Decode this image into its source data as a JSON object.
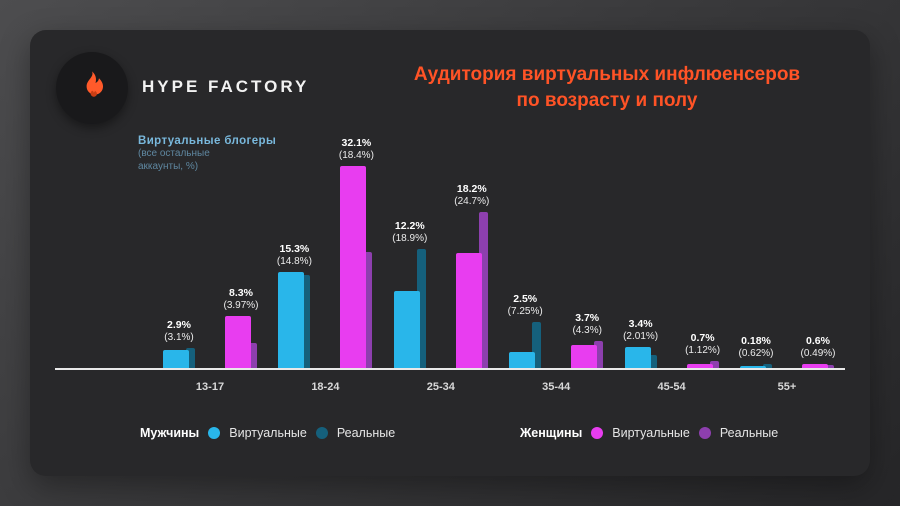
{
  "brand": {
    "name": "HYPE FACTORY",
    "accent": "#ff5a2a"
  },
  "title": {
    "line1": "Аудитория виртуальных инфлюенсеров",
    "line2": "по возрасту и полу",
    "color": "#ff5326"
  },
  "annotation": {
    "heading": "Виртуальные  блогеры",
    "sub_line1": "(все остальные",
    "sub_line2": "аккаунты, %)"
  },
  "legend": {
    "men_title": "Мужчины",
    "women_title": "Женщины",
    "virtual_label": "Виртуальные",
    "real_label": "Реальные"
  },
  "chart_data": {
    "type": "bar",
    "title": "Аудитория виртуальных инфлюенсеров по возрасту и полу",
    "note": "Виртуальные блогеры (все остальные аккаунты, %)",
    "grid": false,
    "legend_position": "bottom",
    "ylim": [
      0,
      35
    ],
    "categories": [
      "13-17",
      "18-24",
      "25-34",
      "35-44",
      "45-54",
      "55+"
    ],
    "series": [
      {
        "name": "Мужчины — Виртуальные",
        "color": "#29b6ea",
        "values": [
          2.9,
          15.3,
          12.2,
          2.5,
          3.4,
          0.18
        ]
      },
      {
        "name": "Мужчины — Реальные",
        "color": "#15607c",
        "values": [
          3.1,
          14.8,
          18.9,
          7.25,
          2.01,
          0.62
        ]
      },
      {
        "name": "Женщины — Виртуальные",
        "color": "#e83df0",
        "values": [
          8.3,
          32.1,
          18.2,
          3.7,
          0.7,
          0.6
        ]
      },
      {
        "name": "Женщины — Реальные",
        "color": "#8d3fae",
        "values": [
          3.97,
          18.4,
          24.7,
          4.3,
          1.12,
          0.49
        ]
      }
    ],
    "colors": {
      "men_virtual": "#29b6ea",
      "men_real": "#15607c",
      "women_virtual": "#e83df0",
      "women_real": "#8d3fae"
    },
    "groups": [
      {
        "category": "13-17",
        "men": {
          "virtual": 2.9,
          "real": 3.1,
          "label": "2.9%",
          "sub": "(3.1%)"
        },
        "women": {
          "virtual": 8.3,
          "real": 3.97,
          "label": "8.3%",
          "sub": "(3.97%)"
        }
      },
      {
        "category": "18-24",
        "men": {
          "virtual": 15.3,
          "real": 14.8,
          "label": "15.3%",
          "sub": "(14.8%)"
        },
        "women": {
          "virtual": 32.1,
          "real": 18.4,
          "label": "32.1%",
          "sub": "(18.4%)"
        }
      },
      {
        "category": "25-34",
        "men": {
          "virtual": 12.2,
          "real": 18.9,
          "label": "12.2%",
          "sub": "(18.9%)"
        },
        "women": {
          "virtual": 18.2,
          "real": 24.7,
          "label": "18.2%",
          "sub": "(24.7%)"
        }
      },
      {
        "category": "35-44",
        "men": {
          "virtual": 2.5,
          "real": 7.25,
          "label": "2.5%",
          "sub": "(7.25%)"
        },
        "women": {
          "virtual": 3.7,
          "real": 4.3,
          "label": "3.7%",
          "sub": "(4.3%)"
        }
      },
      {
        "category": "45-54",
        "men": {
          "virtual": 3.4,
          "real": 2.01,
          "label": "3.4%",
          "sub": "(2.01%)"
        },
        "women": {
          "virtual": 0.7,
          "real": 1.12,
          "label": "0.7%",
          "sub": "(1.12%)"
        }
      },
      {
        "category": "55+",
        "men": {
          "virtual": 0.18,
          "real": 0.62,
          "label": "0.18%",
          "sub": "(0.62%)"
        },
        "women": {
          "virtual": 0.6,
          "real": 0.49,
          "label": "0.6%",
          "sub": "(0.49%)"
        }
      }
    ]
  }
}
